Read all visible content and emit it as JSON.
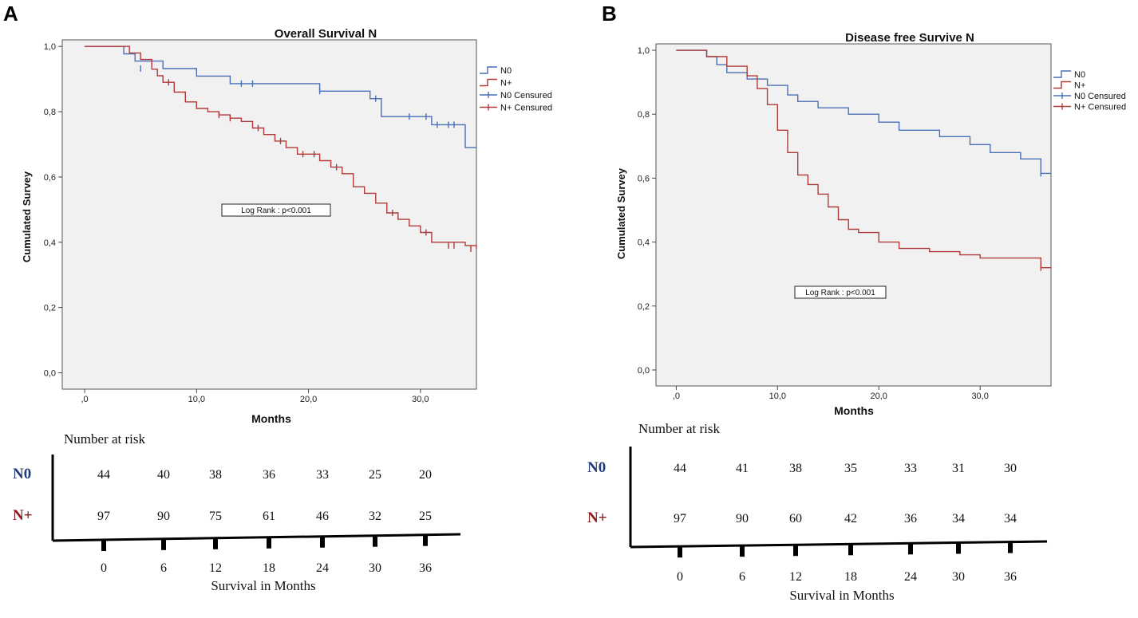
{
  "panels": [
    {
      "letter": "A",
      "chart_data": {
        "type": "line",
        "title": "Overall Survival N",
        "xlabel": "Months",
        "ylabel": "Cumulated Survey",
        "xlim": [
          -2,
          35
        ],
        "ylim": [
          -0.05,
          1.02
        ],
        "xticks": [
          0,
          10,
          20,
          30
        ],
        "xtick_labels": [
          ",0",
          "10,0",
          "20,0",
          "30,0"
        ],
        "yticks": [
          0,
          0.2,
          0.4,
          0.6,
          0.8,
          1.0
        ],
        "ytick_labels": [
          "0,0",
          "0,2",
          "0,4",
          "0,6",
          "0,8",
          "1,0"
        ],
        "annotation": "Log Rank : p<0.001",
        "legend": [
          "N0",
          "N+",
          "N0 Censured",
          "N+ Censured"
        ],
        "series": [
          {
            "name": "N0",
            "color": "#4a6fb5",
            "x": [
              0,
              3.5,
              4.5,
              7,
              10,
              13,
              21,
              25.5,
              26.5,
              31,
              34,
              35
            ],
            "y": [
              1.0,
              0.977,
              0.955,
              0.932,
              0.909,
              0.886,
              0.863,
              0.84,
              0.785,
              0.76,
              0.69,
              0.69
            ],
            "censor_x": [
              5,
              14,
              15,
              21,
              26,
              29,
              30.5,
              31.5,
              32.5,
              33
            ],
            "censor_y": [
              0.932,
              0.886,
              0.886,
              0.863,
              0.84,
              0.785,
              0.785,
              0.76,
              0.76,
              0.76
            ]
          },
          {
            "name": "N+",
            "color": "#b03a3a",
            "x": [
              0,
              4,
              5,
              6,
              6.5,
              7,
              8,
              9,
              10,
              11,
              12,
              13,
              14,
              15,
              16,
              17,
              18,
              19,
              20,
              21,
              22,
              23,
              24,
              25,
              26,
              27,
              28,
              29,
              30,
              31,
              34,
              35
            ],
            "y": [
              1.0,
              0.98,
              0.96,
              0.93,
              0.91,
              0.89,
              0.86,
              0.83,
              0.81,
              0.8,
              0.79,
              0.78,
              0.77,
              0.75,
              0.73,
              0.71,
              0.69,
              0.67,
              0.67,
              0.65,
              0.63,
              0.61,
              0.57,
              0.55,
              0.52,
              0.49,
              0.47,
              0.45,
              0.43,
              0.4,
              0.39,
              0.38
            ],
            "censor_x": [
              7.5,
              12,
              13,
              15.5,
              17.5,
              19.5,
              20.5,
              22.5,
              27.5,
              30.5,
              32.5,
              33,
              34.5
            ],
            "censor_y": [
              0.89,
              0.79,
              0.78,
              0.75,
              0.71,
              0.67,
              0.67,
              0.63,
              0.49,
              0.43,
              0.39,
              0.39,
              0.38
            ]
          }
        ]
      },
      "risk": {
        "title": "Number at risk",
        "xlabel": "Survival in Months",
        "time_labels": [
          "0",
          "6",
          "12",
          "18",
          "24",
          "30",
          "36"
        ],
        "rows": [
          {
            "label": "N0",
            "color": "#1f3d7a",
            "values": [
              "44",
              "40",
              "38",
              "36",
              "33",
              "25",
              "20"
            ]
          },
          {
            "label": "N+",
            "color": "#8b1a1a",
            "values": [
              "97",
              "90",
              "75",
              "61",
              "46",
              "32",
              "25"
            ]
          }
        ]
      }
    },
    {
      "letter": "B",
      "chart_data": {
        "type": "line",
        "title": "Disease free Survive N",
        "xlabel": "Months",
        "ylabel": "Cumulated Survey",
        "xlim": [
          -2,
          37
        ],
        "ylim": [
          -0.05,
          1.02
        ],
        "xticks": [
          0,
          10,
          20,
          30
        ],
        "xtick_labels": [
          ",0",
          "10,0",
          "20,0",
          "30,0"
        ],
        "yticks": [
          0,
          0.2,
          0.4,
          0.6,
          0.8,
          1.0
        ],
        "ytick_labels": [
          "0,0",
          "0,2",
          "0,4",
          "0,6",
          "0,8",
          "1,0"
        ],
        "annotation": "Log Rank : p<0.001",
        "legend": [
          "N0",
          "N+",
          "N0 Censured",
          "N+ Censured"
        ],
        "series": [
          {
            "name": "N0",
            "color": "#4a6fb5",
            "x": [
              0,
              3,
              4,
              5,
              7,
              9,
              11,
              12,
              14,
              17,
              20,
              22,
              26,
              29,
              31,
              34,
              36,
              37
            ],
            "y": [
              1.0,
              0.98,
              0.955,
              0.93,
              0.91,
              0.89,
              0.86,
              0.84,
              0.82,
              0.8,
              0.775,
              0.75,
              0.73,
              0.705,
              0.68,
              0.66,
              0.615,
              0.615
            ],
            "censor_x": [
              36
            ],
            "censor_y": [
              0.615
            ]
          },
          {
            "name": "N+",
            "color": "#b03a3a",
            "x": [
              0,
              3,
              5,
              7,
              8,
              9,
              10,
              11,
              12,
              13,
              14,
              15,
              16,
              17,
              18,
              20,
              22,
              25,
              28,
              30,
              36,
              37
            ],
            "y": [
              1.0,
              0.98,
              0.95,
              0.92,
              0.88,
              0.83,
              0.75,
              0.68,
              0.61,
              0.58,
              0.55,
              0.51,
              0.47,
              0.44,
              0.43,
              0.4,
              0.38,
              0.37,
              0.36,
              0.35,
              0.32,
              0.32
            ],
            "censor_x": [
              36
            ],
            "censor_y": [
              0.32
            ]
          }
        ]
      },
      "risk": {
        "title": "Number at risk",
        "xlabel": "Survival in Months",
        "time_labels": [
          "0",
          "6",
          "12",
          "18",
          "24",
          "30",
          "36"
        ],
        "rows": [
          {
            "label": "N0",
            "color": "#1f3d7a",
            "values": [
              "44",
              "41",
              "38",
              "35",
              "33",
              "31",
              "30"
            ]
          },
          {
            "label": "N+",
            "color": "#8b1a1a",
            "values": [
              "97",
              "90",
              "60",
              "42",
              "36",
              "34",
              "34"
            ]
          }
        ]
      }
    }
  ]
}
